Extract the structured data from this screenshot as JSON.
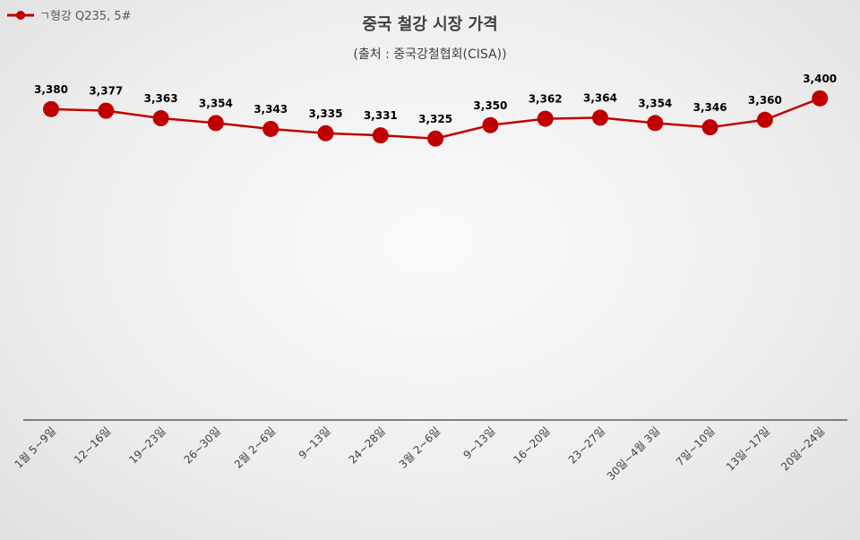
{
  "chart_data": {
    "type": "line",
    "title": "중국 철강 시장 가격",
    "subtitle": "(출처 : 중국강철협회(CISA))",
    "categories": [
      "1월 5~9일",
      "12~16일",
      "19~23일",
      "26~30일",
      "2월 2~6일",
      "9~13일",
      "24~28일",
      "3월 2~6일",
      "9~13일",
      "16~20일",
      "23~27일",
      "30일~4월 3일",
      "7일~10일",
      "13일~17일",
      "20일~24일"
    ],
    "series": [
      {
        "name": "ㄱ형강 Q235, 5#",
        "values": [
          3380,
          3377,
          3363,
          3354,
          3343,
          3335,
          3331,
          3325,
          3350,
          3362,
          3364,
          3354,
          3346,
          3360,
          3400
        ]
      }
    ],
    "data_labels": [
      "3,380",
      "3,377",
      "3,363",
      "3,354",
      "3,343",
      "3,335",
      "3,331",
      "3,325",
      "3,350",
      "3,362",
      "3,364",
      "3,354",
      "3,346",
      "3,360",
      "3,400"
    ],
    "xlabel": "",
    "ylabel": "",
    "ylim": [
      2800,
      3500
    ],
    "grid": false,
    "legend_position": "top-left",
    "colors": {
      "line": "#c00000",
      "marker": "#c00000",
      "axis": "#404040"
    }
  }
}
